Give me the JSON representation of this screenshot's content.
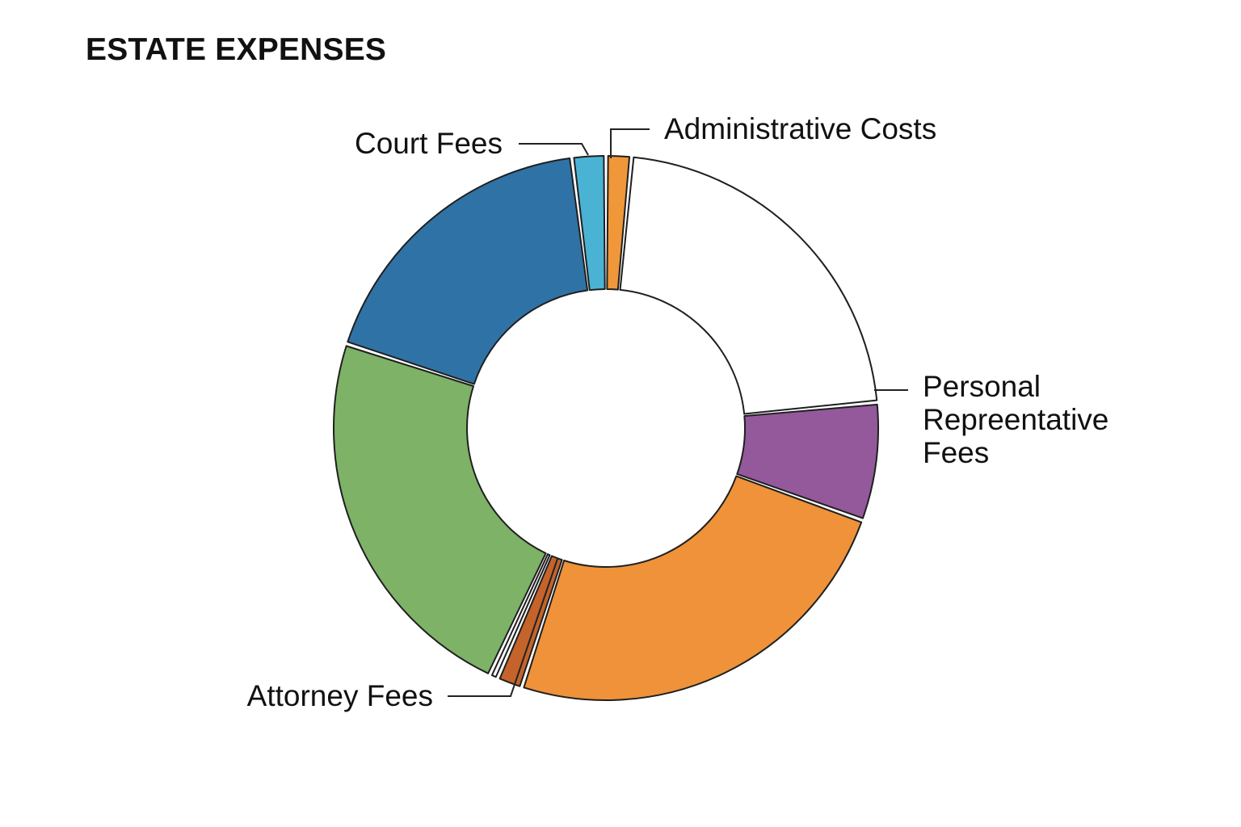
{
  "chart_data": {
    "type": "pie",
    "title": "ESTATE EXPENSES",
    "donut": true,
    "legend": "none",
    "slices": [
      {
        "label": "Administrative Costs",
        "value": 1.5,
        "color": "#f0973a",
        "labeled": true
      },
      {
        "label": "",
        "value": 22.0,
        "color": "#ffffff",
        "labeled": false
      },
      {
        "label": "Personal Repreentative Fees",
        "label_lines": [
          "Personal",
          "Repreentative",
          "Fees"
        ],
        "value": 7.0,
        "color": "#93599a",
        "labeled": true
      },
      {
        "label": "",
        "value": 24.5,
        "color": "#ef923a",
        "labeled": false
      },
      {
        "label": "",
        "value": 1.5,
        "color": "#c4642a",
        "labeled": false
      },
      {
        "label": "Attorney Fees",
        "value": 0.5,
        "color": "#ffffff",
        "labeled": true
      },
      {
        "label": "",
        "value": 23.0,
        "color": "#7db267",
        "labeled": false
      },
      {
        "label": "",
        "value": 18.0,
        "color": "#2f73a6",
        "labeled": false
      },
      {
        "label": "Court Fees",
        "value": 2.0,
        "color": "#4ab3d4",
        "labeled": true
      }
    ]
  }
}
